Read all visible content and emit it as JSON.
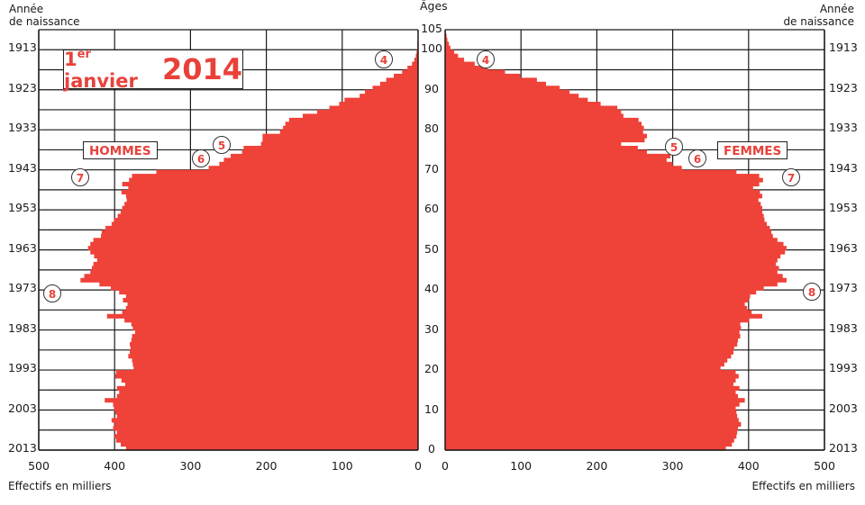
{
  "chart_data": {
    "type": "bar",
    "subtype": "population-pyramid",
    "title": "1er janvier 2014",
    "title_parts": {
      "prefix": "1",
      "superscript": "er",
      "word": "janvier",
      "year": "2014"
    },
    "xlabel": "Effectifs en milliers",
    "ylabel_center": "Âges",
    "ylabel_sides": "Année de naissance",
    "xlim": [
      0,
      500
    ],
    "ylim": [
      0,
      105
    ],
    "x_ticks_left": [
      "500",
      "400",
      "300",
      "200",
      "100",
      "0"
    ],
    "x_ticks_right": [
      "0",
      "100",
      "200",
      "300",
      "400",
      "500"
    ],
    "age_ticks": [
      "105",
      "100",
      "90",
      "80",
      "70",
      "60",
      "50",
      "40",
      "30",
      "20",
      "10",
      "0"
    ],
    "year_ticks": [
      "1913",
      "1923",
      "1933",
      "1943",
      "1953",
      "1963",
      "1973",
      "1983",
      "1993",
      "2003",
      "2013"
    ],
    "grid": true,
    "legend": {
      "left": "HOMMES",
      "right": "FEMMES"
    },
    "annotations": [
      "4",
      "5",
      "6",
      "7",
      "8"
    ],
    "color": "#ef4238",
    "ages": [
      0,
      1,
      2,
      3,
      4,
      5,
      6,
      7,
      8,
      9,
      10,
      11,
      12,
      13,
      14,
      15,
      16,
      17,
      18,
      19,
      20,
      21,
      22,
      23,
      24,
      25,
      26,
      27,
      28,
      29,
      30,
      31,
      32,
      33,
      34,
      35,
      36,
      37,
      38,
      39,
      40,
      41,
      42,
      43,
      44,
      45,
      46,
      47,
      48,
      49,
      50,
      51,
      52,
      53,
      54,
      55,
      56,
      57,
      58,
      59,
      60,
      61,
      62,
      63,
      64,
      65,
      66,
      67,
      68,
      69,
      70,
      71,
      72,
      73,
      74,
      75,
      76,
      77,
      78,
      79,
      80,
      81,
      82,
      83,
      84,
      85,
      86,
      87,
      88,
      89,
      90,
      91,
      92,
      93,
      94,
      95,
      96,
      97,
      98,
      99,
      100,
      101,
      102,
      103,
      104
    ],
    "series": [
      {
        "name": "HOMMES",
        "values": [
          385,
          392,
          398,
          400,
          397,
          402,
          400,
          404,
          397,
          399,
          401,
          402,
          413,
          397,
          394,
          397,
          386,
          391,
          399,
          398,
          375,
          376,
          377,
          382,
          380,
          379,
          380,
          378,
          377,
          373,
          376,
          378,
          387,
          410,
          390,
          385,
          383,
          389,
          385,
          394,
          405,
          420,
          445,
          440,
          432,
          430,
          428,
          423,
          427,
          432,
          435,
          432,
          428,
          418,
          417,
          412,
          404,
          401,
          396,
          392,
          390,
          387,
          384,
          385,
          391,
          382,
          390,
          381,
          377,
          345,
          276,
          262,
          256,
          247,
          232,
          230,
          207,
          205,
          205,
          182,
          178,
          175,
          170,
          152,
          133,
          117,
          104,
          97,
          77,
          70,
          60,
          50,
          42,
          32,
          21,
          14,
          8,
          5,
          3,
          2,
          1,
          1,
          0.5,
          0.3,
          0.1
        ]
      },
      {
        "name": "FEMMES",
        "values": [
          370,
          378,
          381,
          384,
          385,
          386,
          390,
          387,
          385,
          384,
          383,
          388,
          395,
          386,
          383,
          388,
          380,
          383,
          387,
          383,
          363,
          368,
          372,
          377,
          380,
          381,
          385,
          386,
          389,
          388,
          390,
          389,
          401,
          418,
          404,
          398,
          395,
          400,
          402,
          410,
          420,
          438,
          450,
          445,
          438,
          440,
          436,
          438,
          442,
          448,
          450,
          446,
          438,
          432,
          430,
          428,
          424,
          421,
          420,
          418,
          418,
          416,
          413,
          418,
          415,
          406,
          414,
          419,
          414,
          384,
          312,
          300,
          292,
          297,
          266,
          254,
          232,
          263,
          266,
          261,
          262,
          259,
          255,
          235,
          232,
          227,
          205,
          188,
          176,
          164,
          151,
          133,
          121,
          99,
          79,
          56,
          39,
          25,
          17,
          12,
          7,
          5,
          3,
          2,
          1
        ]
      }
    ]
  },
  "labels": {
    "annee_line1": "Année",
    "annee_line2": "de naissance",
    "ages": "Âges",
    "effectifs": "Effectifs en milliers",
    "hommes": "HOMMES",
    "femmes": "FEMMES",
    "title_prefix": "1",
    "title_sup": "er",
    "title_word": "janvier",
    "title_year": "2014"
  }
}
